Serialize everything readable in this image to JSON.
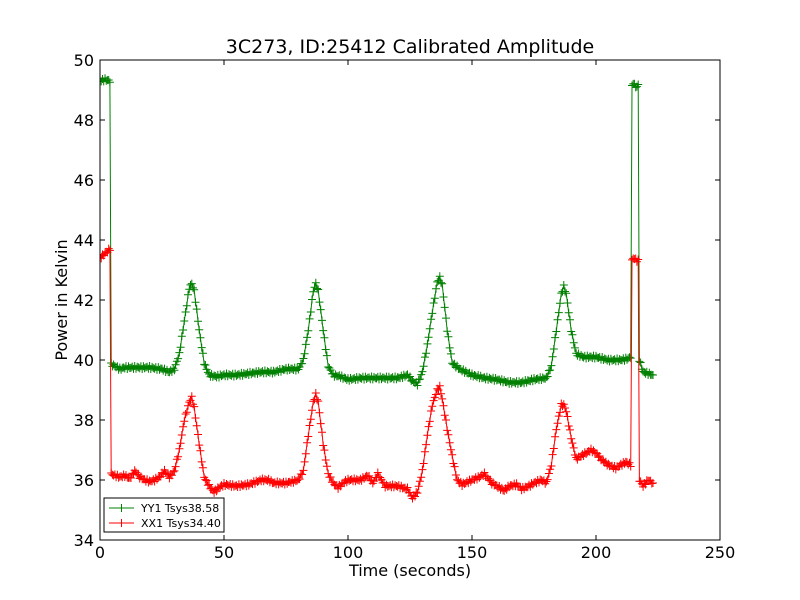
{
  "chart_data": {
    "type": "line",
    "title": "3C273, ID:25412 Calibrated Amplitude",
    "xlabel": "Time (seconds)",
    "ylabel": "Power in Kelvin",
    "xlim": [
      0,
      250
    ],
    "ylim": [
      34,
      50
    ],
    "xticks": [
      0,
      50,
      100,
      150,
      200,
      250
    ],
    "yticks": [
      34,
      36,
      38,
      40,
      42,
      44,
      46,
      48,
      50
    ],
    "grid": false,
    "legend_position": "lower-left",
    "marker": "+",
    "series": [
      {
        "name": "YY1 Tsys38.58",
        "color": "#008000",
        "points": [
          [
            0,
            49.3
          ],
          [
            2,
            49.35
          ],
          [
            4,
            49.3
          ],
          [
            4.5,
            39.85
          ],
          [
            6,
            39.8
          ],
          [
            8,
            39.7
          ],
          [
            10,
            39.75
          ],
          [
            15,
            39.75
          ],
          [
            20,
            39.75
          ],
          [
            25,
            39.7
          ],
          [
            28,
            39.6
          ],
          [
            30,
            39.7
          ],
          [
            32,
            40.2
          ],
          [
            34,
            41.3
          ],
          [
            36,
            42.4
          ],
          [
            37,
            42.55
          ],
          [
            38,
            42.3
          ],
          [
            40,
            41.0
          ],
          [
            42,
            39.9
          ],
          [
            44,
            39.5
          ],
          [
            47,
            39.45
          ],
          [
            50,
            39.5
          ],
          [
            55,
            39.5
          ],
          [
            60,
            39.55
          ],
          [
            65,
            39.6
          ],
          [
            70,
            39.6
          ],
          [
            75,
            39.7
          ],
          [
            80,
            39.7
          ],
          [
            82,
            40.0
          ],
          [
            84,
            41.0
          ],
          [
            86,
            42.3
          ],
          [
            87,
            42.55
          ],
          [
            88,
            42.3
          ],
          [
            90,
            41.0
          ],
          [
            92,
            39.8
          ],
          [
            94,
            39.5
          ],
          [
            97,
            39.45
          ],
          [
            100,
            39.35
          ],
          [
            105,
            39.4
          ],
          [
            110,
            39.4
          ],
          [
            115,
            39.4
          ],
          [
            120,
            39.4
          ],
          [
            124,
            39.5
          ],
          [
            126,
            39.3
          ],
          [
            128,
            39.2
          ],
          [
            130,
            39.6
          ],
          [
            132,
            40.5
          ],
          [
            134,
            41.6
          ],
          [
            136,
            42.6
          ],
          [
            137,
            42.75
          ],
          [
            138,
            42.5
          ],
          [
            140,
            41.0
          ],
          [
            142,
            39.9
          ],
          [
            145,
            39.7
          ],
          [
            150,
            39.5
          ],
          [
            155,
            39.4
          ],
          [
            160,
            39.35
          ],
          [
            165,
            39.25
          ],
          [
            170,
            39.25
          ],
          [
            175,
            39.35
          ],
          [
            180,
            39.4
          ],
          [
            182,
            39.8
          ],
          [
            184,
            41.0
          ],
          [
            186,
            42.2
          ],
          [
            187,
            42.45
          ],
          [
            188,
            42.2
          ],
          [
            190,
            41.0
          ],
          [
            192,
            40.2
          ],
          [
            195,
            40.1
          ],
          [
            200,
            40.1
          ],
          [
            205,
            40.0
          ],
          [
            210,
            40.0
          ],
          [
            213,
            40.05
          ],
          [
            214,
            40.1
          ],
          [
            214.5,
            49.1
          ],
          [
            215,
            49.25
          ],
          [
            216,
            49.1
          ],
          [
            217,
            49.15
          ],
          [
            217.5,
            40.0
          ],
          [
            219,
            39.6
          ],
          [
            221,
            39.55
          ],
          [
            223,
            39.5
          ]
        ]
      },
      {
        "name": "XX1 Tsys34.40",
        "color": "#ff0000",
        "points": [
          [
            0,
            43.4
          ],
          [
            2,
            43.55
          ],
          [
            4,
            43.7
          ],
          [
            4.5,
            36.2
          ],
          [
            6,
            36.15
          ],
          [
            8,
            36.1
          ],
          [
            10,
            36.15
          ],
          [
            12,
            36.05
          ],
          [
            14,
            36.3
          ],
          [
            16,
            36.1
          ],
          [
            18,
            36.0
          ],
          [
            20,
            35.95
          ],
          [
            22,
            36.0
          ],
          [
            24,
            36.1
          ],
          [
            26,
            36.3
          ],
          [
            28,
            36.1
          ],
          [
            30,
            36.3
          ],
          [
            32,
            37.0
          ],
          [
            34,
            38.0
          ],
          [
            36,
            38.6
          ],
          [
            37,
            38.75
          ],
          [
            38,
            38.4
          ],
          [
            40,
            37.2
          ],
          [
            42,
            36.1
          ],
          [
            44,
            35.8
          ],
          [
            46,
            35.6
          ],
          [
            48,
            35.75
          ],
          [
            50,
            35.85
          ],
          [
            55,
            35.8
          ],
          [
            60,
            35.85
          ],
          [
            65,
            36.0
          ],
          [
            68,
            36.0
          ],
          [
            70,
            35.9
          ],
          [
            75,
            35.9
          ],
          [
            80,
            36.0
          ],
          [
            82,
            36.3
          ],
          [
            84,
            37.5
          ],
          [
            86,
            38.6
          ],
          [
            87,
            38.85
          ],
          [
            88,
            38.6
          ],
          [
            90,
            37.2
          ],
          [
            92,
            36.2
          ],
          [
            94,
            35.9
          ],
          [
            96,
            35.75
          ],
          [
            98,
            35.9
          ],
          [
            100,
            36.0
          ],
          [
            105,
            36.0
          ],
          [
            108,
            36.15
          ],
          [
            110,
            35.9
          ],
          [
            112,
            36.2
          ],
          [
            115,
            35.8
          ],
          [
            120,
            35.8
          ],
          [
            124,
            35.7
          ],
          [
            126,
            35.4
          ],
          [
            128,
            35.6
          ],
          [
            130,
            36.3
          ],
          [
            132,
            37.5
          ],
          [
            134,
            38.5
          ],
          [
            136,
            39.0
          ],
          [
            137,
            39.1
          ],
          [
            138,
            38.7
          ],
          [
            140,
            37.7
          ],
          [
            142,
            36.8
          ],
          [
            144,
            36.0
          ],
          [
            146,
            35.85
          ],
          [
            150,
            36.0
          ],
          [
            153,
            36.1
          ],
          [
            155,
            36.2
          ],
          [
            158,
            35.9
          ],
          [
            160,
            35.8
          ],
          [
            163,
            35.65
          ],
          [
            165,
            35.8
          ],
          [
            168,
            35.85
          ],
          [
            170,
            35.7
          ],
          [
            173,
            35.8
          ],
          [
            175,
            35.9
          ],
          [
            178,
            36.0
          ],
          [
            180,
            35.9
          ],
          [
            182,
            36.5
          ],
          [
            184,
            37.7
          ],
          [
            186,
            38.5
          ],
          [
            187,
            38.5
          ],
          [
            188,
            38.3
          ],
          [
            190,
            37.4
          ],
          [
            192,
            36.7
          ],
          [
            194,
            36.8
          ],
          [
            196,
            36.9
          ],
          [
            198,
            37.0
          ],
          [
            200,
            36.9
          ],
          [
            202,
            36.7
          ],
          [
            205,
            36.5
          ],
          [
            208,
            36.4
          ],
          [
            212,
            36.6
          ],
          [
            214,
            36.5
          ],
          [
            214.5,
            43.3
          ],
          [
            215,
            43.4
          ],
          [
            216,
            43.35
          ],
          [
            217,
            43.3
          ],
          [
            217.5,
            36.0
          ],
          [
            219,
            35.8
          ],
          [
            221,
            36.0
          ],
          [
            223,
            35.9
          ]
        ]
      }
    ]
  }
}
